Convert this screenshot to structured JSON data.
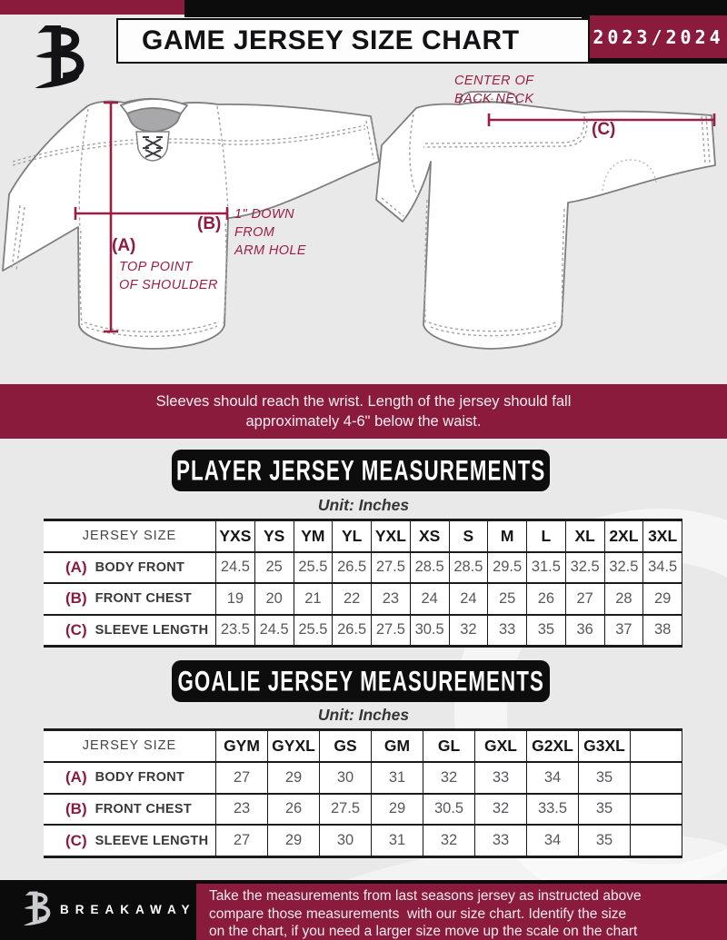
{
  "header": {
    "title": "GAME JERSEY SIZE CHART",
    "season": "2023/2024"
  },
  "diagram": {
    "front": {
      "marker_a": "(A)",
      "marker_b": "(B)",
      "note_a_line1": "TOP POINT",
      "note_a_line2": "OF SHOULDER",
      "note_b_line1": "1\" DOWN",
      "note_b_line2": "FROM",
      "note_b_line3": "ARM HOLE"
    },
    "back": {
      "marker_c": "(C)",
      "note_c_line1": "CENTER OF",
      "note_c_line2": "BACK NECK"
    }
  },
  "notice": {
    "line1": "Sleeves should reach the wrist. Length of the jersey should fall",
    "line2": "approximately 4-6\" below the waist."
  },
  "player": {
    "banner": "PLAYER JERSEY MEASUREMENTS",
    "unit": "Unit: Inches",
    "size_label": "JERSEY SIZE",
    "sizes": [
      "YXS",
      "YS",
      "YM",
      "YL",
      "YXL",
      "XS",
      "S",
      "M",
      "L",
      "XL",
      "2XL",
      "3XL"
    ],
    "rows": [
      {
        "key": "(A)",
        "label": "BODY FRONT",
        "values": [
          "24.5",
          "25",
          "25.5",
          "26.5",
          "27.5",
          "28.5",
          "28.5",
          "29.5",
          "31.5",
          "32.5",
          "32.5",
          "34.5"
        ]
      },
      {
        "key": "(B)",
        "label": "FRONT CHEST",
        "values": [
          "19",
          "20",
          "21",
          "22",
          "23",
          "24",
          "24",
          "25",
          "26",
          "27",
          "28",
          "29"
        ]
      },
      {
        "key": "(C)",
        "label": "SLEEVE LENGTH",
        "values": [
          "23.5",
          "24.5",
          "25.5",
          "26.5",
          "27.5",
          "30.5",
          "32",
          "33",
          "35",
          "36",
          "37",
          "38"
        ]
      }
    ]
  },
  "goalie": {
    "banner": "GOALIE JERSEY MEASUREMENTS",
    "unit": "Unit: Inches",
    "size_label": "JERSEY SIZE",
    "sizes": [
      "GYM",
      "GYXL",
      "GS",
      "GM",
      "GL",
      "GXL",
      "G2XL",
      "G3XL",
      ""
    ],
    "rows": [
      {
        "key": "(A)",
        "label": "BODY FRONT",
        "values": [
          "27",
          "29",
          "30",
          "31",
          "32",
          "33",
          "34",
          "35",
          ""
        ]
      },
      {
        "key": "(B)",
        "label": "FRONT CHEST",
        "values": [
          "23",
          "26",
          "27.5",
          "29",
          "30.5",
          "32",
          "33.5",
          "35",
          ""
        ]
      },
      {
        "key": "(C)",
        "label": "SLEEVE LENGTH",
        "values": [
          "27",
          "29",
          "30",
          "31",
          "32",
          "33",
          "34",
          "35",
          ""
        ]
      }
    ]
  },
  "footer": {
    "brand": "BREAKAWAY",
    "line1": "Take the measurements from last seasons jersey as instructed above",
    "line2": "compare those measurements  with our size chart. Identify the size",
    "line3": "on the chart, if you need a larger size move up the scale on the chart"
  },
  "colors": {
    "maroon": "#8a1b3c",
    "black": "#0c0c0d",
    "page_gray": "#e9e9ea",
    "line_maroon": "#9a1f42"
  }
}
